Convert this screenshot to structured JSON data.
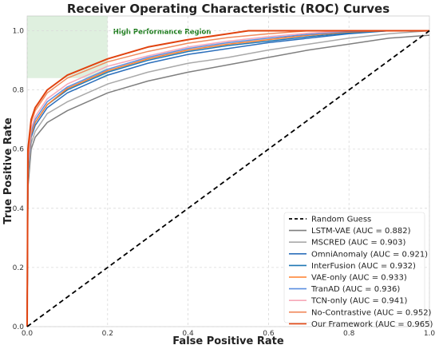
{
  "chart_data": {
    "type": "line",
    "title": "Receiver Operating Characteristic (ROC) Curves",
    "xlabel": "False Positive Rate",
    "ylabel": "True Positive Rate",
    "xlim": [
      0,
      1
    ],
    "ylim": [
      0,
      1.05
    ],
    "xticks": [
      "0.0",
      "0.2",
      "0.4",
      "0.6",
      "0.8",
      "1.0"
    ],
    "yticks": [
      "0.0",
      "0.2",
      "0.4",
      "0.6",
      "0.8",
      "1.0"
    ],
    "grid": true,
    "legend_position": "lower-right",
    "annotation": {
      "text": "High Performance Region",
      "region": {
        "x": [
          0,
          0.2
        ],
        "y": [
          0.84,
          1.05
        ]
      },
      "color": "#2e8b2e"
    },
    "baseline": {
      "name": "Random Guess",
      "x": [
        0,
        1
      ],
      "y": [
        0,
        1
      ],
      "color": "#000000"
    },
    "series": [
      {
        "name": "LSTM-VAE (AUC = 0.882)",
        "color": "#7f7f7f",
        "x": [
          0,
          0.002,
          0.01,
          0.02,
          0.05,
          0.1,
          0.2,
          0.3,
          0.4,
          0.5,
          0.6,
          0.7,
          0.8,
          0.9,
          1.0
        ],
        "y": [
          0,
          0.47,
          0.6,
          0.64,
          0.69,
          0.73,
          0.79,
          0.83,
          0.86,
          0.885,
          0.91,
          0.935,
          0.955,
          0.975,
          0.985
        ]
      },
      {
        "name": "MSCRED (AUC = 0.903)",
        "color": "#a9a9a9",
        "x": [
          0,
          0.002,
          0.01,
          0.02,
          0.05,
          0.1,
          0.2,
          0.3,
          0.4,
          0.5,
          0.6,
          0.7,
          0.8,
          0.9,
          1.0
        ],
        "y": [
          0,
          0.5,
          0.62,
          0.66,
          0.72,
          0.76,
          0.82,
          0.86,
          0.89,
          0.91,
          0.935,
          0.955,
          0.975,
          0.99,
          1.0
        ]
      },
      {
        "name": "OmniAnomaly (AUC = 0.921)",
        "color": "#2c6fbb",
        "x": [
          0,
          0.002,
          0.01,
          0.02,
          0.05,
          0.1,
          0.2,
          0.3,
          0.4,
          0.5,
          0.6,
          0.7,
          0.8,
          0.9,
          1.0
        ],
        "y": [
          0,
          0.52,
          0.64,
          0.68,
          0.74,
          0.79,
          0.85,
          0.89,
          0.92,
          0.94,
          0.96,
          0.975,
          0.99,
          1.0,
          1.0
        ]
      },
      {
        "name": "InterFusion (AUC = 0.932)",
        "color": "#1f77b4",
        "x": [
          0,
          0.002,
          0.01,
          0.02,
          0.05,
          0.1,
          0.2,
          0.3,
          0.4,
          0.5,
          0.6,
          0.7,
          0.8,
          0.9,
          1.0
        ],
        "y": [
          0,
          0.53,
          0.65,
          0.69,
          0.75,
          0.8,
          0.86,
          0.9,
          0.93,
          0.95,
          0.965,
          0.98,
          0.993,
          1.0,
          1.0
        ]
      },
      {
        "name": "VAE-only (AUC = 0.933)",
        "color": "#ff7f2a",
        "x": [
          0,
          0.002,
          0.01,
          0.02,
          0.05,
          0.1,
          0.2,
          0.3,
          0.4,
          0.5,
          0.6,
          0.7,
          0.8,
          0.9,
          1.0
        ],
        "y": [
          0,
          0.53,
          0.65,
          0.69,
          0.75,
          0.805,
          0.865,
          0.905,
          0.935,
          0.955,
          0.97,
          0.985,
          0.996,
          1.0,
          1.0
        ]
      },
      {
        "name": "TranAD (AUC = 0.936)",
        "color": "#5b8fe0",
        "x": [
          0,
          0.002,
          0.01,
          0.02,
          0.05,
          0.1,
          0.2,
          0.3,
          0.4,
          0.5,
          0.6,
          0.7,
          0.8,
          0.9,
          1.0
        ],
        "y": [
          0,
          0.54,
          0.66,
          0.7,
          0.76,
          0.81,
          0.87,
          0.91,
          0.94,
          0.96,
          0.975,
          0.988,
          0.998,
          1.0,
          1.0
        ]
      },
      {
        "name": "TCN-only (AUC = 0.941)",
        "color": "#f7a8b8",
        "x": [
          0,
          0.002,
          0.01,
          0.02,
          0.05,
          0.1,
          0.2,
          0.3,
          0.4,
          0.5,
          0.6,
          0.7,
          0.8,
          0.9,
          1.0
        ],
        "y": [
          0,
          0.55,
          0.67,
          0.71,
          0.77,
          0.82,
          0.88,
          0.915,
          0.945,
          0.965,
          0.98,
          0.992,
          1.0,
          1.0,
          1.0
        ]
      },
      {
        "name": "No-Contrastive (AUC = 0.952)",
        "color": "#f08a5d",
        "x": [
          0,
          0.002,
          0.01,
          0.02,
          0.05,
          0.1,
          0.2,
          0.3,
          0.4,
          0.5,
          0.6,
          0.7,
          0.8,
          0.9,
          1.0
        ],
        "y": [
          0,
          0.57,
          0.69,
          0.73,
          0.79,
          0.84,
          0.895,
          0.93,
          0.958,
          0.977,
          0.99,
          1.0,
          1.0,
          1.0,
          1.0
        ]
      },
      {
        "name": "Our Framework (AUC = 0.965)",
        "color": "#e0430f",
        "x": [
          0,
          0.002,
          0.01,
          0.02,
          0.05,
          0.1,
          0.2,
          0.3,
          0.4,
          0.5,
          0.55,
          0.7,
          0.8,
          0.9,
          1.0
        ],
        "y": [
          0,
          0.6,
          0.7,
          0.74,
          0.8,
          0.85,
          0.905,
          0.945,
          0.97,
          0.99,
          1.0,
          1.0,
          1.0,
          1.0,
          1.0
        ]
      }
    ]
  }
}
